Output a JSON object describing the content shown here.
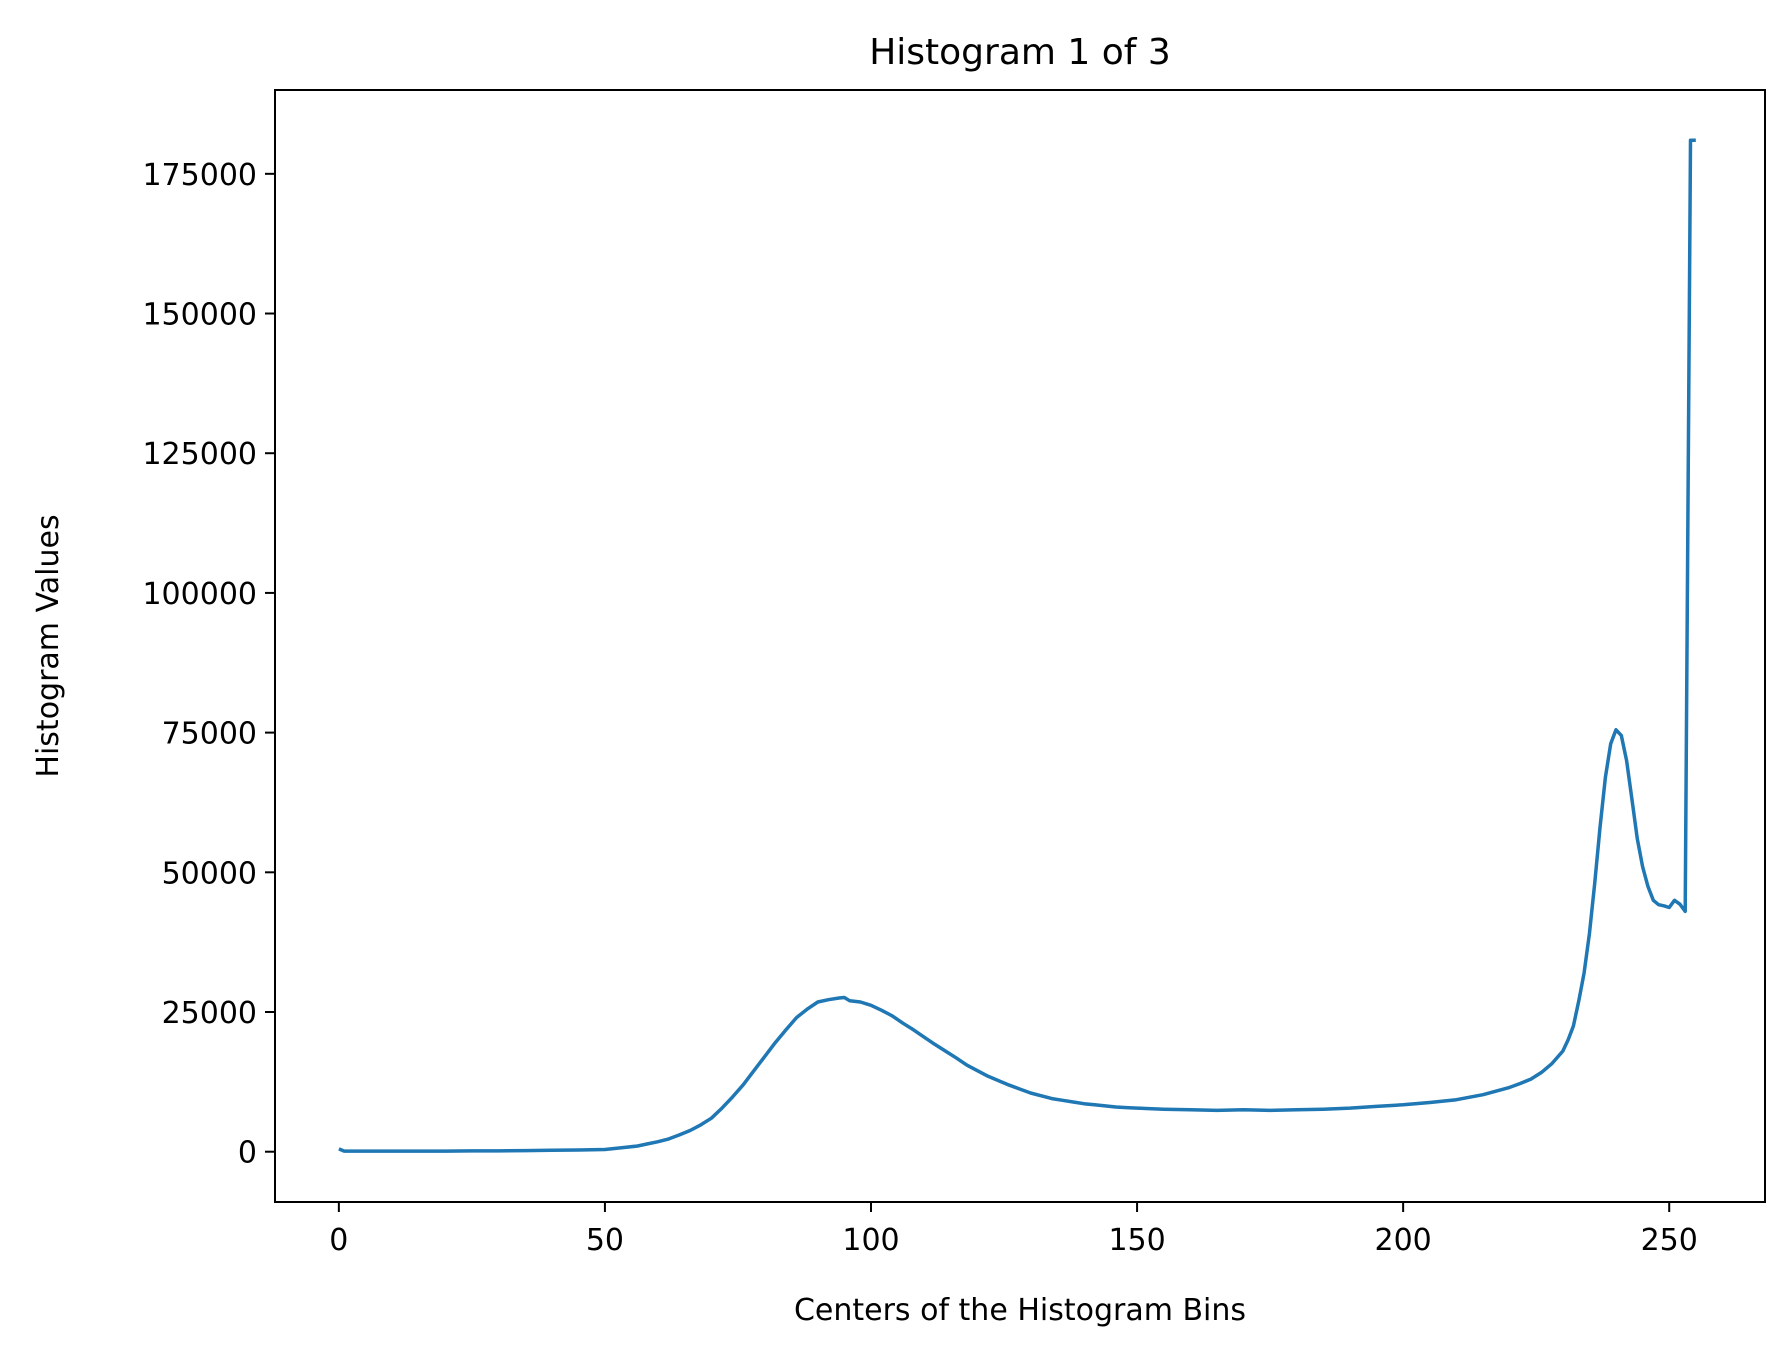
{
  "chart_data": {
    "type": "line",
    "title": "Histogram 1 of 3",
    "xlabel": "Centers of the Histogram Bins",
    "ylabel": "Histogram Values",
    "xlim": [
      -12,
      268
    ],
    "ylim": [
      -9000,
      190000
    ],
    "grid": false,
    "legend": "none",
    "line_color": "#1f77b4",
    "xticks": [
      0,
      50,
      100,
      150,
      200,
      250
    ],
    "yticks": [
      0,
      25000,
      50000,
      75000,
      100000,
      125000,
      150000,
      175000
    ],
    "series": [
      {
        "x": [
          0,
          1,
          2,
          5,
          10,
          15,
          20,
          25,
          30,
          35,
          40,
          45,
          50,
          52,
          54,
          56,
          58,
          60,
          62,
          64,
          66,
          68,
          70,
          72,
          74,
          76,
          78,
          80,
          82,
          84,
          86,
          88,
          90,
          92,
          94,
          95,
          96,
          98,
          100,
          102,
          104,
          106,
          108,
          110,
          112,
          114,
          116,
          118,
          120,
          122,
          124,
          126,
          128,
          130,
          132,
          134,
          136,
          138,
          140,
          142,
          144,
          146,
          148,
          150,
          155,
          160,
          165,
          170,
          175,
          180,
          185,
          190,
          195,
          200,
          205,
          210,
          215,
          220,
          222,
          224,
          226,
          228,
          230,
          231,
          232,
          233,
          234,
          235,
          236,
          237,
          238,
          239,
          240,
          241,
          242,
          243,
          244,
          245,
          246,
          247,
          248,
          249,
          250,
          251,
          252,
          253,
          254,
          255
        ],
        "y": [
          500,
          100,
          100,
          100,
          100,
          100,
          100,
          150,
          150,
          200,
          250,
          300,
          400,
          600,
          800,
          1000,
          1400,
          1800,
          2300,
          3000,
          3800,
          4800,
          6000,
          7800,
          9800,
          12000,
          14500,
          17000,
          19500,
          21800,
          24000,
          25500,
          26800,
          27200,
          27500,
          27600,
          27000,
          26800,
          26200,
          25300,
          24300,
          23000,
          21800,
          20500,
          19200,
          18000,
          16800,
          15500,
          14500,
          13500,
          12700,
          11900,
          11200,
          10500,
          10000,
          9500,
          9200,
          8900,
          8600,
          8400,
          8200,
          8000,
          7900,
          7800,
          7600,
          7500,
          7400,
          7500,
          7400,
          7500,
          7600,
          7800,
          8100,
          8400,
          8800,
          9300,
          10200,
          11500,
          12200,
          13000,
          14200,
          15800,
          18000,
          20000,
          22500,
          27000,
          32000,
          39000,
          48000,
          58000,
          67000,
          73000,
          75500,
          74500,
          70000,
          63000,
          56000,
          51000,
          47500,
          45000,
          44200,
          44000,
          43700,
          45000,
          44300,
          43000,
          181000,
          181000
        ]
      }
    ]
  }
}
